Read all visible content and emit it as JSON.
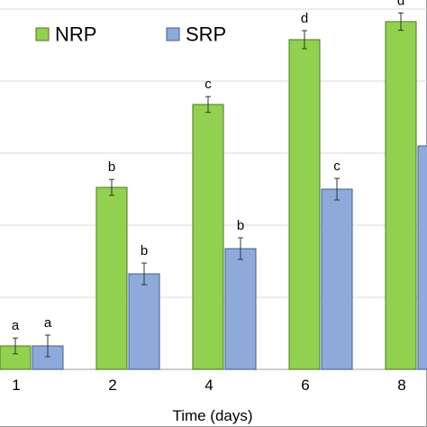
{
  "chart_data": {
    "type": "bar",
    "title": "",
    "xlabel": "Time (days)",
    "ylabel": "",
    "categories": [
      "1",
      "2",
      "4",
      "6",
      "8"
    ],
    "ylim": [
      0,
      100
    ],
    "grid": true,
    "legend_position": "top",
    "series": [
      {
        "name": "NRP",
        "color": "#92d050",
        "values": [
          6.5,
          50.5,
          73.5,
          91.5,
          96.5
        ],
        "errors": [
          2.2,
          2.2,
          2.2,
          2.5,
          2.4
        ],
        "labels": [
          "a",
          "b",
          "c",
          "d",
          "d"
        ]
      },
      {
        "name": "SRP",
        "color": "#8eaadb",
        "values": [
          6.5,
          26.5,
          33.5,
          50,
          62
        ],
        "errors": [
          3,
          3,
          3,
          3,
          3
        ],
        "labels": [
          "a",
          "b",
          "b",
          "c",
          ""
        ]
      }
    ]
  }
}
